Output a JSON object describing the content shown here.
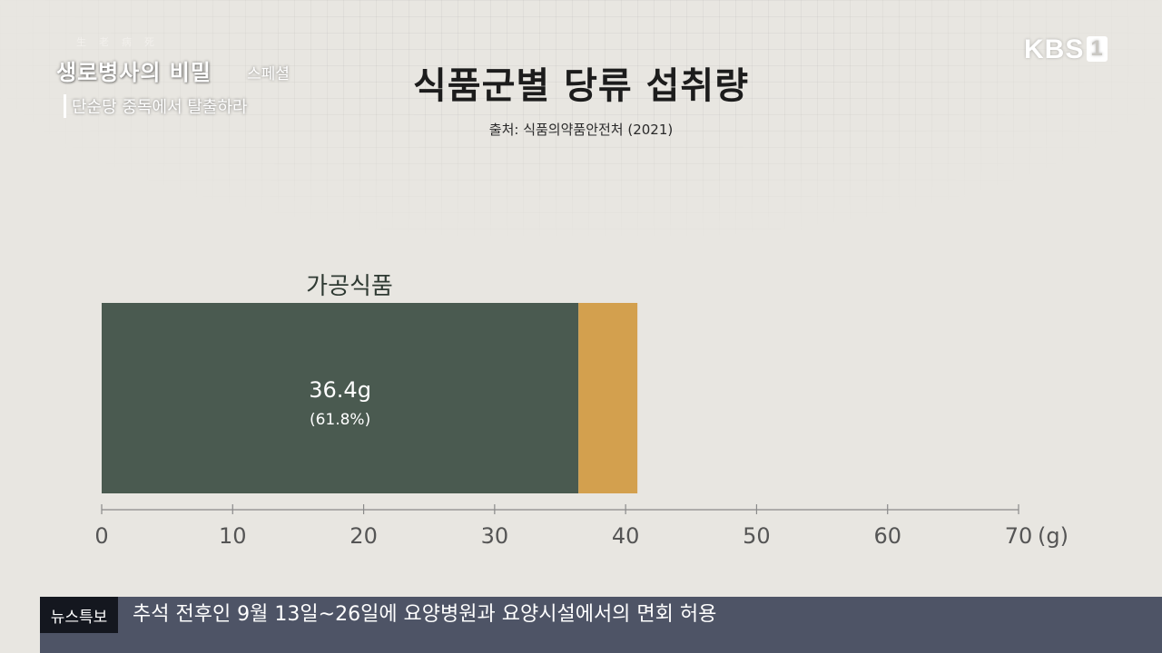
{
  "overlay": {
    "program_hanja": "生老病死",
    "program_title": "생로병사의 비밀",
    "program_special": "스페셜",
    "program_subtitle": "단순당 중독에서 탈출하라",
    "broadcaster": "KBS",
    "channel": "1"
  },
  "news_ticker": {
    "label": "뉴스특보",
    "text": "추석 전후인 9월 13일~26일에 요양병원과 요양시설에서의 면회 허용"
  },
  "colors": {
    "primary_segment": "#4a5a50",
    "secondary_segment": "#d3a04e",
    "background": "#e8e6e1",
    "ticker": "#4e5466"
  },
  "chart_data": {
    "type": "bar",
    "orientation": "horizontal",
    "stacked": true,
    "title": "식품군별 당류 섭취량",
    "source": "출처: 식품의약품안전처 (2021)",
    "categories": [
      "가공식품"
    ],
    "series": [
      {
        "values": [
          36.4
        ],
        "value_label": "36.4g",
        "percent_label": "(61.8%)"
      },
      {
        "values": [
          4.5
        ]
      }
    ],
    "xlim": [
      0,
      70
    ],
    "xticks": [
      0,
      10,
      20,
      30,
      40,
      50,
      60,
      70
    ],
    "xunit": "(g)",
    "grid": false
  }
}
